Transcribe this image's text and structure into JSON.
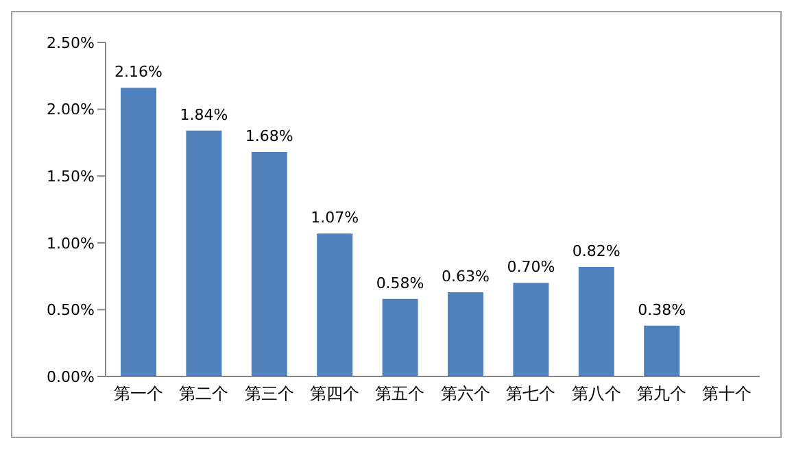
{
  "chart_data": {
    "type": "bar",
    "categories": [
      "第一个",
      "第二个",
      "第三个",
      "第四个",
      "第五个",
      "第六个",
      "第七个",
      "第八个",
      "第九个",
      "第十个"
    ],
    "values": [
      2.16,
      1.84,
      1.68,
      1.07,
      0.58,
      0.63,
      0.7,
      0.82,
      0.38,
      null
    ],
    "value_labels": [
      "2.16%",
      "1.84%",
      "1.68%",
      "1.07%",
      "0.58%",
      "0.63%",
      "0.70%",
      "0.82%",
      "0.38%",
      null
    ],
    "color": "#4f81bd",
    "ylim": [
      0,
      2.5
    ],
    "yticks": [
      {
        "value": 0,
        "label": "0.00%"
      },
      {
        "value": 0.5,
        "label": "0.50%"
      },
      {
        "value": 1,
        "label": "1.00%"
      },
      {
        "value": 1.5,
        "label": "1.50%"
      },
      {
        "value": 2,
        "label": "2.00%"
      },
      {
        "value": 2.5,
        "label": "2.50%"
      }
    ],
    "grid": false,
    "legend": false
  }
}
